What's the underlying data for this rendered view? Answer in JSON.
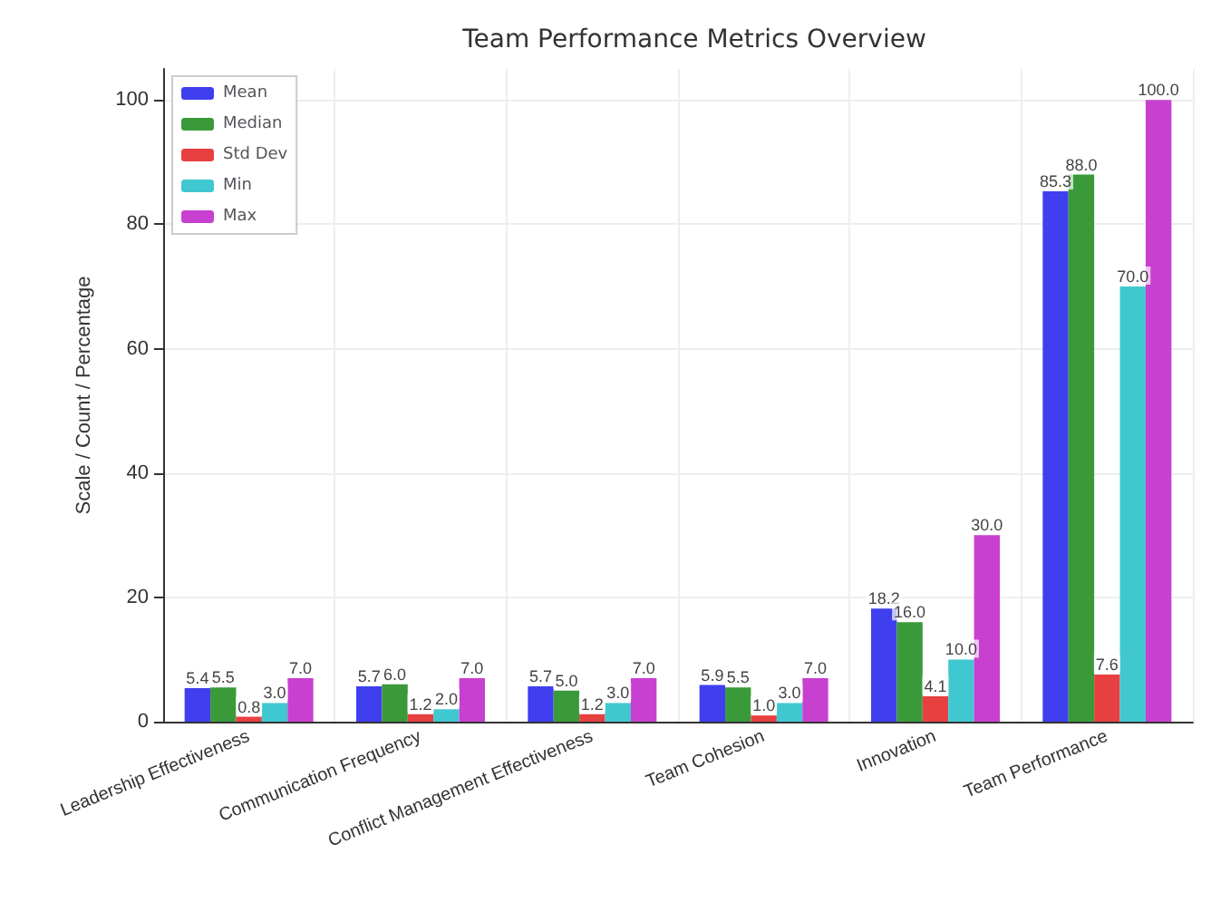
{
  "chart_data": {
    "type": "bar",
    "title": "Team Performance Metrics Overview",
    "ylabel": "Scale / Count / Percentage",
    "categories": [
      "Leadership Effectiveness",
      "Communication Frequency",
      "Conflict Management Effectiveness",
      "Team Cohesion",
      "Innovation",
      "Team Performance"
    ],
    "series": [
      {
        "name": "Mean",
        "color": "#3f3ff0",
        "values": [
          5.4,
          5.7,
          5.7,
          5.9,
          18.2,
          85.3
        ],
        "value_labels": [
          "5.4",
          "5.7",
          "5.7",
          "5.9",
          "18.2",
          "85.3"
        ]
      },
      {
        "name": "Median",
        "color": "#3a9a3a",
        "values": [
          5.5,
          6.0,
          5.0,
          5.5,
          16.0,
          88.0
        ],
        "value_labels": [
          "5.5",
          "6.0",
          "5.0",
          "5.5",
          "16.0",
          "88.0"
        ]
      },
      {
        "name": "Std Dev",
        "color": "#e84040",
        "values": [
          0.8,
          1.2,
          1.2,
          1.0,
          4.1,
          7.6
        ],
        "value_labels": [
          "0.8",
          "1.2",
          "1.2",
          "1.0",
          "4.1",
          "7.6"
        ]
      },
      {
        "name": "Min",
        "color": "#40c8d0",
        "values": [
          3.0,
          2.0,
          3.0,
          3.0,
          10.0,
          70.0
        ],
        "value_labels": [
          "3.0",
          "2.0",
          "3.0",
          "3.0",
          "10.0",
          "70.0"
        ]
      },
      {
        "name": "Max",
        "color": "#c840d0",
        "values": [
          7.0,
          7.0,
          7.0,
          7.0,
          30.0,
          100.0
        ],
        "value_labels": [
          "7.0",
          "7.0",
          "7.0",
          "7.0",
          "30.0",
          "100.0"
        ]
      }
    ],
    "ylim": [
      0,
      105
    ],
    "yticks": [
      0,
      20,
      40,
      60,
      80,
      100
    ],
    "grid": true,
    "legend": "top left"
  }
}
